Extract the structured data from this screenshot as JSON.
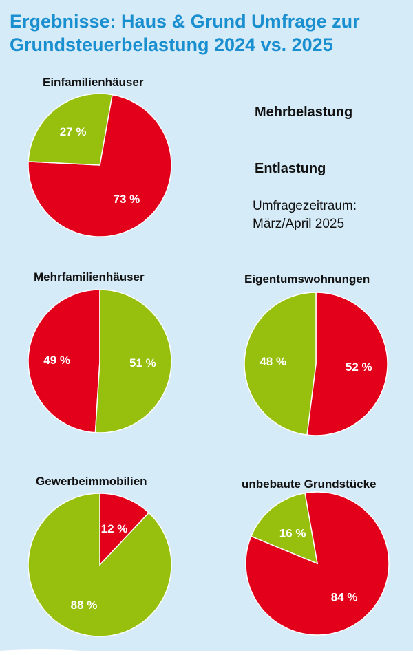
{
  "title_lines": [
    "Ergebnisse: Haus & Grund Umfrage zur",
    "Grundsteuerbelastung 2024 vs. 2025"
  ],
  "legend": [
    {
      "label": "Mehrbelastung",
      "color": "#e2001a"
    },
    {
      "label": "Entlastung",
      "color": "#97bf0d"
    }
  ],
  "period_lines": [
    "Umfragezeitraum:",
    "März/April 2025"
  ],
  "chart_data": [
    {
      "type": "pie",
      "title": "Einfamilienhäuser",
      "slices": [
        {
          "label": "Mehrbelastung",
          "value": 73,
          "text": "73 %"
        },
        {
          "label": "Entlastung",
          "value": 27,
          "text": "27 %"
        }
      ]
    },
    {
      "type": "pie",
      "title": "Mehrfamilienhäuser",
      "slices": [
        {
          "label": "Mehrbelastung",
          "value": 49,
          "text": "49 %"
        },
        {
          "label": "Entlastung",
          "value": 51,
          "text": "51 %"
        }
      ]
    },
    {
      "type": "pie",
      "title": "Eigentumswohnungen",
      "slices": [
        {
          "label": "Mehrbelastung",
          "value": 52,
          "text": "52 %"
        },
        {
          "label": "Entlastung",
          "value": 48,
          "text": "48 %"
        }
      ]
    },
    {
      "type": "pie",
      "title": "Gewerbeimmobilien",
      "slices": [
        {
          "label": "Mehrbelastung",
          "value": 12,
          "text": "12 %"
        },
        {
          "label": "Entlastung",
          "value": 88,
          "text": "88 %"
        }
      ]
    },
    {
      "type": "pie",
      "title": "unbebaute Grundstücke",
      "slices": [
        {
          "label": "Mehrbelastung",
          "value": 84,
          "text": "84 %"
        },
        {
          "label": "Entlastung",
          "value": 16,
          "text": "16 %"
        }
      ]
    }
  ]
}
